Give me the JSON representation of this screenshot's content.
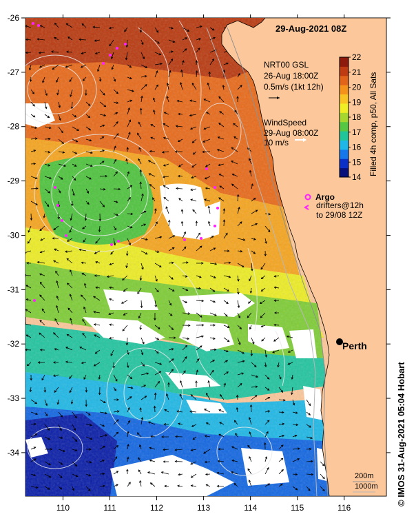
{
  "title": "29-Aug-2021 08Z",
  "current_legend": {
    "name": "NRT00 GSL",
    "time": "26-Aug 18:00Z",
    "scale": "0.5m/s (1kt 12h)"
  },
  "wind_legend": {
    "name": "WindSpeed",
    "time": "29-Aug 08:00Z",
    "scale": "10 m/s"
  },
  "argo_legend": {
    "argo_label": "Argo",
    "drifters_label": "drifters@12h",
    "drifters_to": "to 29/08 12Z"
  },
  "colorbar": {
    "title": "Filled 4h comp, p50, All Sats",
    "min": 14,
    "max": 22,
    "ticks": [
      "22",
      "21",
      "20",
      "19",
      "18",
      "17",
      "16",
      "15",
      "14"
    ],
    "colors": [
      "#08107a",
      "#0b30c8",
      "#1577ea",
      "#1fb7e8",
      "#21c59a",
      "#55c742",
      "#a6d72e",
      "#f0ee24",
      "#f9c323",
      "#f4921c",
      "#e1641a",
      "#bf3c12",
      "#8e1a0b"
    ]
  },
  "axes": {
    "x_ticks": [
      "110",
      "111",
      "112",
      "113",
      "114",
      "115",
      "116"
    ],
    "y_ticks": [
      "-26",
      "-27",
      "-28",
      "-29",
      "-30",
      "-31",
      "-32",
      "-33",
      "-34"
    ],
    "lon_range": [
      109.2,
      116.9
    ],
    "lat_range": [
      -34.8,
      -26.0
    ]
  },
  "city": {
    "name": "Perth",
    "lon": 115.86,
    "lat": -31.95
  },
  "depth_labels": {
    "shallow": "200m",
    "deep": "1000m"
  },
  "credit": "© IMOS 31-Aug-2021 05:04 Hobart",
  "colors": {
    "land": "#fcc79a",
    "argo": "#ff22ff",
    "cloud": "#ffffff"
  }
}
